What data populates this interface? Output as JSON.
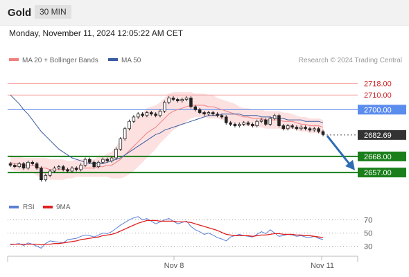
{
  "header": {
    "instrument": "Gold",
    "timeframe": "30 MIN",
    "datetime": "Monday, November 11, 2024 12:05:22 AM CET"
  },
  "legend": {
    "ma20_label": "MA 20 + Bollinger Bands",
    "ma50_label": "MA 50",
    "research": "Research © 2024 Trading Central",
    "rsi_label": "RSI",
    "rsi_ma_label": "9MA"
  },
  "colors": {
    "ma20": "#f08080",
    "ma50": "#3a5ba0",
    "bollinger_fill": "#fde1e1",
    "resistance_line": "#f4a0a0",
    "pivot_line": "#5b8def",
    "support_line": "#1a7f1a",
    "current_price_tag": "#333333",
    "arrow": "#2e6db4",
    "rsi": "#5b7fd6",
    "rsi_ma": "#e02020"
  },
  "chart_data": [
    {
      "type": "candlestick",
      "title": "Gold",
      "x_ticks": [
        "Nov 8",
        "Nov 11"
      ],
      "y_levels": [
        {
          "value": 2718.0,
          "label": "2718.00",
          "kind": "resistance"
        },
        {
          "value": 2710.0,
          "label": "2710.00",
          "kind": "resistance"
        },
        {
          "value": 2700.0,
          "label": "2700.00",
          "kind": "pivot"
        },
        {
          "value": 2682.69,
          "label": "2682.69",
          "kind": "last_price"
        },
        {
          "value": 2668.0,
          "label": "2668.00",
          "kind": "support"
        },
        {
          "value": 2657.0,
          "label": "2657.00",
          "kind": "support"
        }
      ],
      "ylim": [
        2640,
        2730
      ],
      "series": [
        {
          "name": "MA 20 + Bollinger Bands"
        },
        {
          "name": "MA 50"
        }
      ],
      "close": [
        2662,
        2661,
        2663,
        2660,
        2664,
        2663,
        2660,
        2652,
        2655,
        2658,
        2660,
        2661,
        2659,
        2658,
        2660,
        2659,
        2662,
        2666,
        2664,
        2661,
        2664,
        2666,
        2665,
        2667,
        2673,
        2680,
        2687,
        2692,
        2695,
        2697,
        2696,
        2698,
        2697,
        2696,
        2699,
        2705,
        2708,
        2707,
        2706,
        2707,
        2708,
        2702,
        2700,
        2698,
        2697,
        2698,
        2697,
        2696,
        2695,
        2691,
        2690,
        2689,
        2690,
        2691,
        2690,
        2689,
        2692,
        2693,
        2690,
        2694,
        2696,
        2689,
        2687,
        2689,
        2688,
        2687,
        2688,
        2687,
        2686,
        2687,
        2685,
        2683
      ],
      "ma20": [
        2664,
        2663,
        2663,
        2662,
        2662,
        2662,
        2661,
        2660,
        2660,
        2659,
        2659,
        2659,
        2659,
        2659,
        2659,
        2660,
        2660,
        2660,
        2660,
        2660,
        2661,
        2661,
        2662,
        2662,
        2664,
        2666,
        2669,
        2672,
        2675,
        2678,
        2681,
        2684,
        2686,
        2688,
        2691,
        2694,
        2697,
        2699,
        2700,
        2701,
        2702,
        2703,
        2703,
        2703,
        2703,
        2702,
        2702,
        2701,
        2700,
        2699,
        2698,
        2697,
        2696,
        2695,
        2695,
        2694,
        2694,
        2694,
        2693,
        2693,
        2693,
        2693,
        2692,
        2692,
        2692,
        2691,
        2690,
        2690,
        2689,
        2689,
        2689,
        2688
      ],
      "ma50": [
        2710,
        2707,
        2704,
        2700,
        2697,
        2693,
        2689,
        2685,
        2682,
        2679,
        2676,
        2673,
        2671,
        2669,
        2667,
        2666,
        2665,
        2664,
        2663,
        2663,
        2663,
        2663,
        2664,
        2665,
        2666,
        2667,
        2669,
        2671,
        2673,
        2675,
        2677,
        2679,
        2681,
        2683,
        2684,
        2686,
        2687,
        2688,
        2689,
        2690,
        2691,
        2692,
        2693,
        2694,
        2695,
        2696,
        2696,
        2696,
        2697,
        2697,
        2697,
        2697,
        2697,
        2696,
        2696,
        2696,
        2696,
        2695,
        2695,
        2695,
        2694,
        2694,
        2694,
        2693,
        2693,
        2693,
        2693,
        2692,
        2692,
        2692,
        2692,
        2691
      ],
      "bb_width": [
        5,
        5,
        5,
        5,
        5,
        5,
        6,
        7,
        7,
        7,
        7,
        7,
        7,
        6,
        6,
        6,
        6,
        6,
        6,
        6,
        7,
        7,
        8,
        9,
        11,
        13,
        15,
        16,
        17,
        17,
        17,
        17,
        16,
        15,
        14,
        14,
        14,
        13,
        12,
        11,
        10,
        9,
        8,
        8,
        8,
        8,
        8,
        7,
        7,
        7,
        7,
        7,
        6,
        6,
        6,
        6,
        6,
        6,
        6,
        6,
        6,
        6,
        6,
        6,
        5,
        5,
        5,
        5,
        5,
        5,
        5,
        5
      ]
    },
    {
      "type": "line",
      "title": "RSI",
      "yticks": [
        30,
        50,
        70
      ],
      "ylim": [
        20,
        80
      ],
      "series": [
        {
          "name": "RSI",
          "values": [
            32,
            33,
            34,
            31,
            35,
            33,
            30,
            27,
            34,
            38,
            37,
            36,
            35,
            40,
            41,
            42,
            45,
            47,
            46,
            44,
            47,
            50,
            49,
            52,
            57,
            62,
            66,
            70,
            73,
            75,
            70,
            72,
            68,
            64,
            67,
            70,
            72,
            68,
            64,
            66,
            68,
            60,
            55,
            52,
            48,
            50,
            47,
            43,
            41,
            38,
            44,
            46,
            48,
            46,
            45,
            44,
            48,
            52,
            49,
            55,
            50,
            45,
            46,
            48,
            47,
            45,
            46,
            44,
            43,
            45,
            42,
            40
          ]
        },
        {
          "name": "9MA",
          "values": [
            33,
            33,
            33,
            33,
            33,
            33,
            33,
            32,
            33,
            33,
            34,
            34,
            35,
            36,
            37,
            38,
            40,
            41,
            42,
            43,
            44,
            46,
            47,
            48,
            50,
            53,
            56,
            59,
            62,
            65,
            67,
            69,
            69,
            69,
            68,
            68,
            68,
            68,
            67,
            67,
            67,
            66,
            64,
            62,
            60,
            58,
            56,
            54,
            51,
            48,
            47,
            46,
            46,
            46,
            46,
            45,
            46,
            47,
            47,
            48,
            49,
            49,
            48,
            48,
            48,
            47,
            47,
            46,
            46,
            45,
            44,
            43
          ]
        }
      ]
    }
  ]
}
